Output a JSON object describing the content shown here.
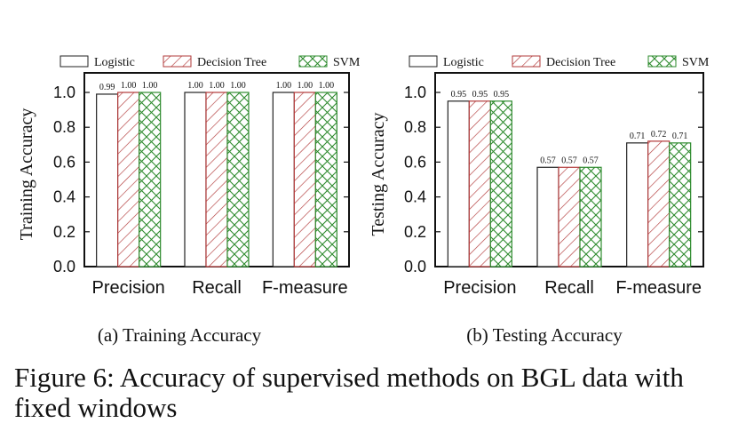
{
  "figure_caption": {
    "line1": "Figure 6: Accuracy of supervised methods on BGL data with",
    "line2": "fixed windows"
  },
  "colors": {
    "logistic": "#222222",
    "decision_tree": "#b23a3a",
    "svm": "#2e8b2e",
    "axis": "#111111"
  },
  "chart_data": [
    {
      "type": "bar",
      "subcaption": "(a) Training Accuracy",
      "ylabel": "Training Accuracy",
      "xlabel": "",
      "ylim": [
        0,
        1.0
      ],
      "yticks": [
        "0.0",
        "0.2",
        "0.4",
        "0.6",
        "0.8",
        "1.0"
      ],
      "categories": [
        "Precision",
        "Recall",
        "F-measure"
      ],
      "legend_position": "top",
      "series": [
        {
          "name": "Logistic",
          "values": [
            0.99,
            1.0,
            1.0
          ],
          "labels": [
            "0.99",
            "1.00",
            "1.00"
          ],
          "pattern": "none"
        },
        {
          "name": "Decision Tree",
          "values": [
            1.0,
            1.0,
            1.0
          ],
          "labels": [
            "1.00",
            "1.00",
            "1.00"
          ],
          "pattern": "diagonal"
        },
        {
          "name": "SVM",
          "values": [
            1.0,
            1.0,
            1.0
          ],
          "labels": [
            "1.00",
            "1.00",
            "1.00"
          ],
          "pattern": "crosshatch"
        }
      ]
    },
    {
      "type": "bar",
      "subcaption": "(b) Testing Accuracy",
      "ylabel": "Testing Accuracy",
      "xlabel": "",
      "ylim": [
        0,
        1.0
      ],
      "yticks": [
        "0.0",
        "0.2",
        "0.4",
        "0.6",
        "0.8",
        "1.0"
      ],
      "categories": [
        "Precision",
        "Recall",
        "F-measure"
      ],
      "legend_position": "top",
      "series": [
        {
          "name": "Logistic",
          "values": [
            0.95,
            0.57,
            0.71
          ],
          "labels": [
            "0.95",
            "0.57",
            "0.71"
          ],
          "pattern": "none"
        },
        {
          "name": "Decision Tree",
          "values": [
            0.95,
            0.57,
            0.72
          ],
          "labels": [
            "0.95",
            "0.57",
            "0.72"
          ],
          "pattern": "diagonal"
        },
        {
          "name": "SVM",
          "values": [
            0.95,
            0.57,
            0.71
          ],
          "labels": [
            "0.95",
            "0.57",
            "0.71"
          ],
          "pattern": "crosshatch"
        }
      ]
    }
  ]
}
